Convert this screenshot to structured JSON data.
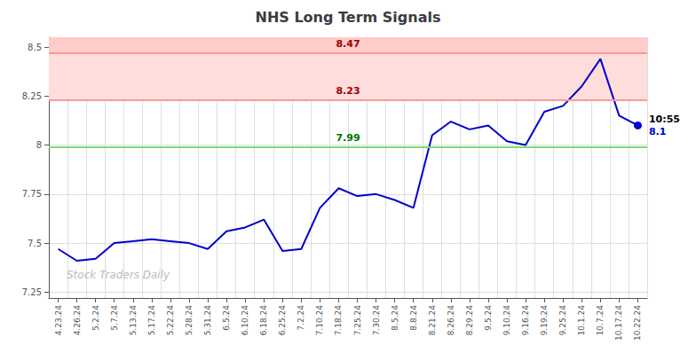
{
  "chart_data": {
    "type": "line",
    "title": "NHS Long Term Signals",
    "categories": [
      "4.23.24",
      "4.26.24",
      "5.2.24",
      "5.7.24",
      "5.13.24",
      "5.17.24",
      "5.22.24",
      "5.28.24",
      "5.31.24",
      "6.5.24",
      "6.10.24",
      "6.18.24",
      "6.25.24",
      "7.2.24",
      "7.10.24",
      "7.18.24",
      "7.25.24",
      "7.30.24",
      "8.5.24",
      "8.8.24",
      "8.21.24",
      "8.26.24",
      "8.29.24",
      "9.5.24",
      "9.10.24",
      "9.16.24",
      "9.19.24",
      "9.25.24",
      "10.1.24",
      "10.7.24",
      "10.17.24",
      "10.22.24"
    ],
    "values": [
      7.47,
      7.41,
      7.42,
      7.5,
      7.51,
      7.52,
      7.51,
      7.5,
      7.47,
      7.56,
      7.58,
      7.62,
      7.46,
      7.47,
      7.68,
      7.78,
      7.74,
      7.75,
      7.72,
      7.68,
      8.05,
      8.12,
      8.08,
      8.1,
      8.02,
      8.0,
      8.17,
      8.2,
      8.3,
      8.44,
      8.15,
      8.1
    ],
    "color": "#0000cc",
    "ylim": [
      7.22,
      8.55
    ],
    "yticks": [
      7.25,
      7.5,
      7.75,
      8.0,
      8.25,
      8.5
    ],
    "grid": true,
    "hlines": [
      {
        "value": 7.99,
        "label": "7.99",
        "color": "#77dd77",
        "label_color": "#007700"
      },
      {
        "value": 8.23,
        "label": "8.23",
        "color": "#ff9999",
        "label_color": "#990000"
      },
      {
        "value": 8.47,
        "label": "8.47",
        "color": "#ff9999",
        "label_color": "#990000"
      }
    ],
    "bands": [
      {
        "from": 8.23,
        "to": 8.47,
        "color": "#ffdddd"
      },
      {
        "from": 8.47,
        "to": 8.55,
        "color": "#ffcccc"
      }
    ],
    "annotations": [
      {
        "text": "10:55",
        "color": "#000000"
      },
      {
        "text": "8.1",
        "color": "#0000cc"
      }
    ],
    "watermark": {
      "text": "Stock Traders Daily",
      "color": "#bbbbbb"
    }
  }
}
